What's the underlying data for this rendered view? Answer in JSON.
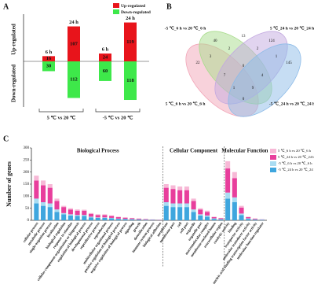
{
  "chart_data": [
    {
      "type": "diverging-bar",
      "label": "A",
      "categories": [
        "6 h",
        "24 h",
        "6 h",
        "24 h"
      ],
      "groups": [
        "5 ℃ vs 20 ℃",
        "-5 ℃ vs 20 ℃"
      ],
      "axis_labels": [
        "Up-regulated",
        "Down-regulated"
      ],
      "ylim": [
        0,
        130
      ],
      "series": [
        {
          "name": "Up-regulated",
          "color": "#e8141b",
          "direction": "up",
          "values": [
            16,
            107,
            24,
            119
          ]
        },
        {
          "name": "Down-regulated",
          "color": "#3ee84a",
          "direction": "down",
          "values": [
            30,
            112,
            60,
            118
          ]
        }
      ]
    },
    {
      "type": "venn",
      "label": "B",
      "sets": [
        {
          "name": "5 ℃_6 h vs 20 ℃_6 h",
          "color": "#f2a6b8"
        },
        {
          "name": "-5 ℃_6 h vs 20 ℃_6 h",
          "color": "#a8dc8c"
        },
        {
          "name": "5 ℃_24 h vs 20 ℃_24 h",
          "color": "#c3a9e0"
        },
        {
          "name": "-5 ℃_24 h vs 20 ℃_24 h",
          "color": "#8dbbe8"
        }
      ],
      "values": [
        22,
        40,
        13,
        124,
        145,
        3,
        2,
        2,
        1,
        7,
        0,
        4,
        1,
        9,
        0
      ]
    },
    {
      "type": "stacked-bar",
      "label": "C",
      "ylabel": "Number of genes",
      "ylim": [
        0,
        300
      ],
      "yticks": [
        0,
        50,
        100,
        150,
        200,
        250,
        300
      ],
      "groups": [
        {
          "name": "Biological Process",
          "categories": [
            "cellular process",
            "metabolic process",
            "single-organism process",
            "localization",
            "biological regulation",
            "response to stimulus",
            "cellular component organization or biogenesis",
            "regulation of biological process",
            "developmental process",
            "reproductive process",
            "reproduction",
            "multicellular organismal process",
            "positive regulation of biological process",
            "negative regulation of biological process",
            "signaling",
            "growth",
            "detoxification",
            "immune system process",
            "biological adhesion"
          ]
        },
        {
          "name": "Cellular Component",
          "categories": [
            "membrane",
            "membrane part",
            "cell",
            "cell part",
            "organelle",
            "organelle part",
            "macromolecular complex",
            "membrane-enclosed lumen",
            "extracellular region"
          ]
        },
        {
          "name": "Molecular Function",
          "categories": [
            "catalytic activity",
            "binding",
            "transporter activity",
            "molecular transducer activity",
            "nucleic acid binding transcription factor activity",
            "molecular function regulator"
          ]
        }
      ],
      "series": [
        {
          "name": "5 ℃_6 h vs 20 ℃_6 h",
          "color": "#f7b8d6",
          "values": [
            20,
            20,
            15,
            10,
            5,
            5,
            5,
            4,
            3,
            3,
            3,
            2,
            2,
            1,
            1,
            1,
            1,
            1,
            0,
            15,
            15,
            15,
            15,
            10,
            5,
            5,
            2,
            1,
            30,
            25,
            7,
            2,
            1,
            1
          ]
        },
        {
          "name": "5 ℃_24 h vs 20 ℃_24 h",
          "color": "#e83e9c",
          "values": [
            75,
            70,
            65,
            35,
            25,
            20,
            18,
            18,
            12,
            10,
            10,
            8,
            6,
            5,
            4,
            3,
            2,
            1,
            1,
            60,
            60,
            55,
            55,
            35,
            20,
            15,
            5,
            4,
            100,
            80,
            25,
            5,
            3,
            1
          ]
        },
        {
          "name": "-5 ℃_6 h vs 20 ℃_6 h",
          "color": "#a9dcf2",
          "values": [
            20,
            15,
            15,
            10,
            5,
            5,
            4,
            4,
            3,
            2,
            2,
            2,
            1,
            1,
            1,
            1,
            1,
            0,
            0,
            15,
            15,
            15,
            15,
            10,
            5,
            5,
            2,
            1,
            25,
            20,
            6,
            2,
            1,
            1
          ]
        },
        {
          "name": "-5 ℃_24 h vs 20 ℃_24 h",
          "color": "#3fa6de",
          "values": [
            70,
            60,
            55,
            35,
            25,
            20,
            18,
            18,
            12,
            10,
            10,
            8,
            6,
            5,
            4,
            3,
            2,
            2,
            1,
            60,
            55,
            55,
            55,
            35,
            20,
            15,
            6,
            4,
            90,
            75,
            22,
            6,
            3,
            2
          ]
        }
      ]
    }
  ]
}
